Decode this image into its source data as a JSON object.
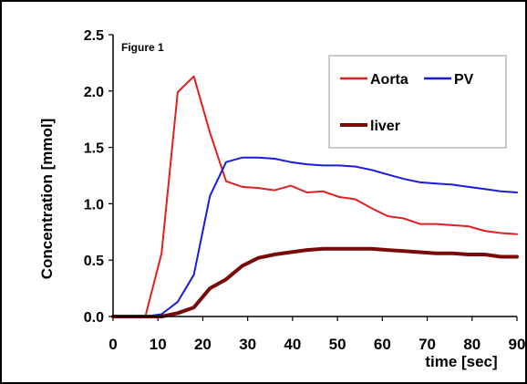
{
  "chart_data": {
    "type": "line",
    "annotation": "Figure 1",
    "xlabel": "time [sec]",
    "ylabel": "Concentration [mmol]",
    "xlim": [
      0,
      90
    ],
    "ylim": [
      0,
      2.5
    ],
    "xticks": [
      0,
      10,
      20,
      30,
      40,
      50,
      60,
      70,
      80,
      90
    ],
    "yticks": [
      0.0,
      0.5,
      1.0,
      1.5,
      2.0,
      2.5
    ],
    "ytick_labels": [
      "0.0",
      "0.5",
      "1.0",
      "1.5",
      "2.0",
      "2.5"
    ],
    "grid": false,
    "legend_position": "top-right",
    "series": [
      {
        "name": "Aorta",
        "color": "#e02020",
        "x": [
          0,
          3.5,
          7.2,
          10.8,
          14.4,
          18,
          21.6,
          25.2,
          28.8,
          32.4,
          36,
          39.6,
          43.2,
          46.8,
          50.4,
          54,
          57.6,
          61.2,
          64.8,
          68.4,
          72,
          75.6,
          79.2,
          82.8,
          86.4,
          90
        ],
        "y": [
          0,
          0,
          0,
          0.56,
          1.99,
          2.13,
          1.63,
          1.2,
          1.15,
          1.14,
          1.12,
          1.16,
          1.1,
          1.11,
          1.06,
          1.04,
          0.96,
          0.89,
          0.87,
          0.82,
          0.82,
          0.81,
          0.8,
          0.76,
          0.74,
          0.73
        ]
      },
      {
        "name": "PV",
        "color": "#1a1ae0",
        "x": [
          0,
          3.5,
          7.2,
          10.8,
          14.4,
          18,
          21.6,
          25.2,
          28.8,
          32.4,
          36,
          39.6,
          43.2,
          46.8,
          50.4,
          54,
          57.6,
          61.2,
          64.8,
          68.4,
          72,
          75.6,
          79.2,
          82.8,
          86.4,
          90
        ],
        "y": [
          0,
          0,
          0,
          0.02,
          0.13,
          0.37,
          1.07,
          1.37,
          1.41,
          1.41,
          1.4,
          1.37,
          1.35,
          1.34,
          1.34,
          1.33,
          1.3,
          1.26,
          1.22,
          1.19,
          1.18,
          1.17,
          1.15,
          1.13,
          1.11,
          1.1
        ]
      },
      {
        "name": "liver",
        "color": "#7a0a0a",
        "x": [
          0,
          3.5,
          7.2,
          10.8,
          14.4,
          18,
          21.6,
          25.2,
          28.8,
          32.4,
          36,
          39.6,
          43.2,
          46.8,
          50.4,
          54,
          57.6,
          61.2,
          64.8,
          68.4,
          72,
          75.6,
          79.2,
          82.8,
          86.4,
          90
        ],
        "y": [
          0,
          0,
          0,
          0,
          0.03,
          0.08,
          0.25,
          0.33,
          0.45,
          0.52,
          0.55,
          0.57,
          0.59,
          0.6,
          0.6,
          0.6,
          0.6,
          0.59,
          0.58,
          0.57,
          0.56,
          0.56,
          0.55,
          0.55,
          0.53,
          0.53
        ]
      }
    ]
  }
}
